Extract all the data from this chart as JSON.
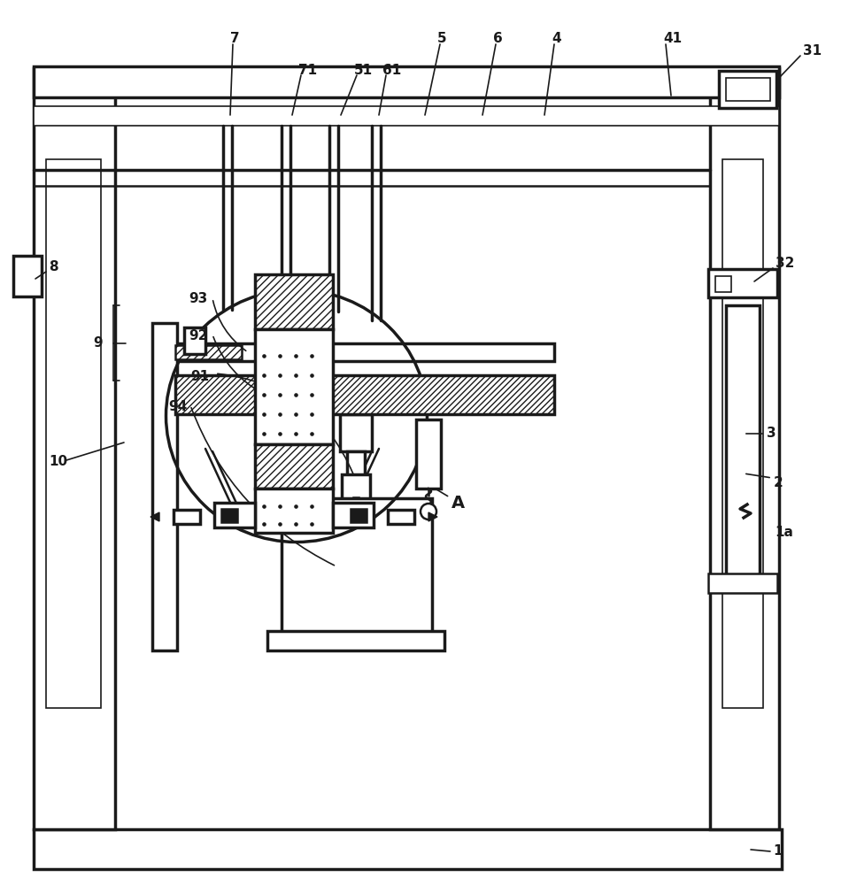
{
  "bg": "#ffffff",
  "lc": "#1a1a1a",
  "lw_main": 1.8,
  "lw_thick": 2.5,
  "lw_thin": 1.2,
  "fig_w": 9.59,
  "fig_h": 10.0,
  "dpi": 100
}
